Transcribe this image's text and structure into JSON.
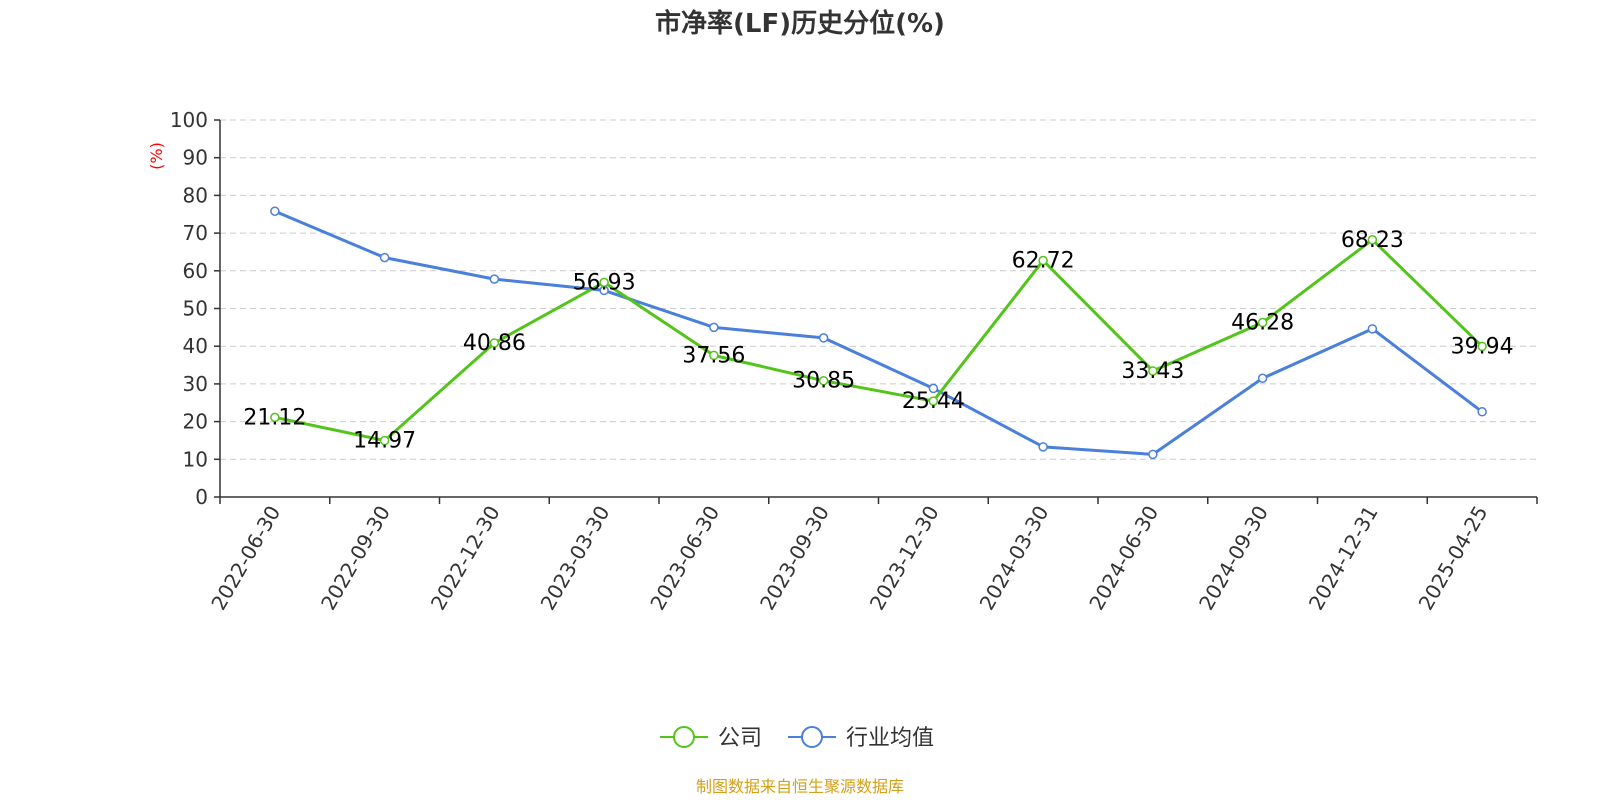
{
  "chart_data": {
    "type": "line",
    "title": "市净率(LF)历史分位(%)",
    "ylabel": "(%)",
    "xlabel": "",
    "ylim": [
      0,
      100
    ],
    "yticks": [
      0,
      10,
      20,
      30,
      40,
      50,
      60,
      70,
      80,
      90,
      100
    ],
    "grid": true,
    "legend_position": "bottom-center",
    "categories": [
      "2022-06-30",
      "2022-09-30",
      "2022-12-30",
      "2023-03-30",
      "2023-06-30",
      "2023-09-30",
      "2023-12-30",
      "2024-03-30",
      "2024-06-30",
      "2024-09-30",
      "2024-12-31",
      "2025-04-25"
    ],
    "series": [
      {
        "name": "公司",
        "color": "#52c41a",
        "values": [
          21.12,
          14.97,
          40.86,
          56.93,
          37.56,
          30.85,
          25.44,
          62.72,
          33.43,
          46.28,
          68.23,
          39.94
        ],
        "show_labels": true
      },
      {
        "name": "行业均值",
        "color": "#4a7fdc",
        "values": [
          75.8,
          63.5,
          57.8,
          54.8,
          45.0,
          42.2,
          28.8,
          13.3,
          11.3,
          31.5,
          44.6,
          22.6
        ],
        "show_labels": false
      }
    ],
    "source": "制图数据来自恒生聚源数据库",
    "colors": {
      "axis": "#333333",
      "grid": "#cccccc",
      "ylabel": "#ff0000",
      "source": "#d4a017",
      "title": "#333333"
    }
  }
}
